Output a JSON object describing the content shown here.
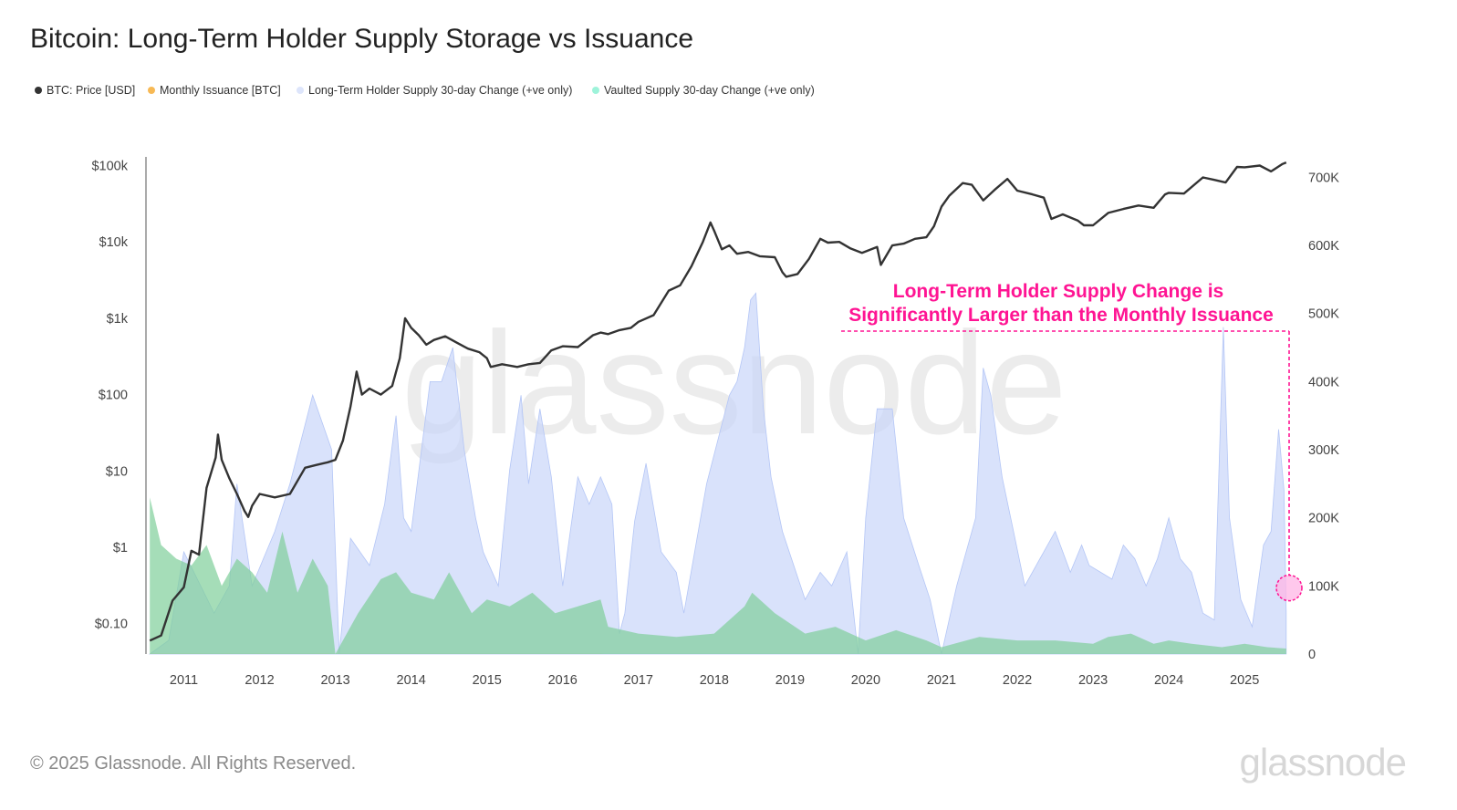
{
  "chart_data": {
    "type": "area",
    "title": "Bitcoin: Long-Term Holder Supply Storage vs Issuance",
    "legend": {
      "placement": "top-left",
      "entries": [
        {
          "name": "BTC: Price [USD]",
          "color": "#333333"
        },
        {
          "name": "Monthly Issuance [BTC]",
          "color": "#f7b955"
        },
        {
          "name": "Long-Term Holder Supply 30-day Change (+ve only)",
          "color": "#dde5fb"
        },
        {
          "name": "Vaulted Supply 30-day Change (+ve only)",
          "color": "#9ef3da"
        }
      ]
    },
    "x_ticks": [
      "2011",
      "2012",
      "2013",
      "2014",
      "2015",
      "2016",
      "2017",
      "2018",
      "2019",
      "2020",
      "2021",
      "2022",
      "2023",
      "2024",
      "2025"
    ],
    "xlim": [
      2010.5,
      2025.6
    ],
    "y_left": {
      "scale": "log",
      "ticks": [
        "$0.10",
        "$1",
        "$10",
        "$100",
        "$1k",
        "$10k",
        "$100k"
      ],
      "tick_values": [
        0.1,
        1,
        10,
        100,
        1000,
        10000,
        100000
      ],
      "ylim": [
        0.04,
        130000
      ]
    },
    "y_right": {
      "scale": "linear",
      "ticks": [
        "0",
        "100K",
        "200K",
        "300K",
        "400K",
        "500K",
        "600K",
        "700K"
      ],
      "tick_values": [
        0,
        100000,
        200000,
        300000,
        400000,
        500000,
        600000,
        700000
      ],
      "ylim": [
        0,
        730000
      ]
    },
    "grid": false,
    "series": [
      {
        "name": "BTC: Price [USD]",
        "axis": "left",
        "color": "#333333",
        "x": [
          2010.55,
          2010.7,
          2010.85,
          2011.0,
          2011.1,
          2011.2,
          2011.3,
          2011.42,
          2011.45,
          2011.5,
          2011.6,
          2011.7,
          2011.8,
          2011.85,
          2011.9,
          2012.0,
          2012.2,
          2012.4,
          2012.6,
          2012.75,
          2012.9,
          2013.0,
          2013.1,
          2013.2,
          2013.28,
          2013.35,
          2013.45,
          2013.6,
          2013.75,
          2013.85,
          2013.92,
          2014.0,
          2014.1,
          2014.2,
          2014.3,
          2014.45,
          2014.6,
          2014.75,
          2014.9,
          2015.0,
          2015.05,
          2015.2,
          2015.4,
          2015.55,
          2015.7,
          2015.85,
          2016.0,
          2016.2,
          2016.4,
          2016.5,
          2016.6,
          2016.75,
          2016.9,
          2017.0,
          2017.2,
          2017.4,
          2017.55,
          2017.7,
          2017.85,
          2017.95,
          2018.0,
          2018.1,
          2018.2,
          2018.3,
          2018.45,
          2018.6,
          2018.8,
          2018.9,
          2018.95,
          2019.1,
          2019.25,
          2019.4,
          2019.5,
          2019.65,
          2019.8,
          2019.95,
          2020.15,
          2020.2,
          2020.35,
          2020.5,
          2020.65,
          2020.8,
          2020.9,
          2021.0,
          2021.1,
          2021.28,
          2021.4,
          2021.55,
          2021.7,
          2021.87,
          2022.0,
          2022.2,
          2022.35,
          2022.45,
          2022.6,
          2022.8,
          2022.88,
          2023.0,
          2023.2,
          2023.4,
          2023.6,
          2023.8,
          2023.95,
          2024.0,
          2024.2,
          2024.45,
          2024.6,
          2024.75,
          2024.9,
          2025.0,
          2025.2,
          2025.35,
          2025.5,
          2025.55
        ],
        "values": [
          0.06,
          0.07,
          0.2,
          0.3,
          0.9,
          0.8,
          6,
          15,
          30,
          14,
          8,
          5,
          3,
          2.5,
          3.5,
          5,
          4.5,
          5,
          11,
          12,
          13,
          14,
          25,
          70,
          200,
          100,
          120,
          100,
          130,
          300,
          1000,
          750,
          600,
          450,
          520,
          580,
          480,
          400,
          360,
          300,
          230,
          250,
          230,
          250,
          260,
          380,
          430,
          420,
          600,
          650,
          620,
          700,
          750,
          900,
          1100,
          2300,
          2700,
          4800,
          10000,
          18000,
          14000,
          8000,
          9000,
          7000,
          7400,
          6500,
          6300,
          4000,
          3500,
          3800,
          6000,
          11000,
          9800,
          10000,
          8200,
          7200,
          8600,
          5000,
          9000,
          9500,
          11000,
          11500,
          16000,
          29000,
          40000,
          59000,
          56000,
          35000,
          48000,
          67000,
          47000,
          42000,
          38000,
          20000,
          23000,
          19000,
          16500,
          16500,
          24000,
          27000,
          30000,
          28000,
          42000,
          44000,
          43000,
          70000,
          65000,
          60000,
          96000,
          95000,
          100000,
          84000,
          105000,
          110000
        ]
      },
      {
        "name": "Monthly Issuance [BTC]",
        "axis": "right",
        "color": "#f7b955",
        "x": [
          2010.55,
          2010.62,
          2010.7,
          2010.8,
          2010.9,
          2011.0,
          2011.2,
          2011.4,
          2011.6,
          2011.8,
          2012.0,
          2012.2,
          2012.4,
          2012.6,
          2012.8,
          2012.9,
          2012.95,
          2013.0,
          2013.5,
          2014.0,
          2014.5,
          2015.0,
          2015.5,
          2016.0,
          2016.5,
          2016.55,
          2017.0,
          2018.0,
          2019.0,
          2020.0,
          2020.38,
          2021.0,
          2022.0,
          2023.0,
          2024.0,
          2024.3,
          2025.0,
          2025.55
        ],
        "values": [
          380,
          450,
          280,
          300,
          250,
          260,
          260,
          200,
          230,
          180,
          210,
          195,
          170,
          200,
          230,
          210,
          100,
          100,
          110,
          115,
          120,
          115,
          110,
          105,
          95,
          48,
          52,
          52,
          50,
          50,
          26,
          26,
          25,
          25,
          25,
          12,
          12,
          12
        ]
      },
      {
        "name": "Long-Term Holder Supply 30-day Change (+ve only)",
        "axis": "right",
        "color": "#dde5fb",
        "x": [
          2010.55,
          2010.8,
          2011.0,
          2011.4,
          2011.6,
          2011.7,
          2011.9,
          2012.05,
          2012.2,
          2012.4,
          2012.7,
          2012.95,
          2013.05,
          2013.2,
          2013.45,
          2013.65,
          2013.8,
          2013.9,
          2014.0,
          2014.25,
          2014.4,
          2014.55,
          2014.7,
          2014.85,
          2014.95,
          2015.15,
          2015.3,
          2015.45,
          2015.55,
          2015.7,
          2015.85,
          2016.0,
          2016.2,
          2016.35,
          2016.5,
          2016.65,
          2016.75,
          2016.82,
          2016.95,
          2017.1,
          2017.3,
          2017.5,
          2017.6,
          2017.9,
          2018.2,
          2018.3,
          2018.4,
          2018.48,
          2018.55,
          2018.65,
          2018.75,
          2018.9,
          2019.2,
          2019.4,
          2019.55,
          2019.75,
          2019.9,
          2020.0,
          2020.15,
          2020.35,
          2020.5,
          2020.7,
          2020.85,
          2021.0,
          2021.2,
          2021.45,
          2021.55,
          2021.65,
          2021.8,
          2021.95,
          2022.1,
          2022.3,
          2022.5,
          2022.7,
          2022.85,
          2022.95,
          2023.1,
          2023.25,
          2023.4,
          2023.55,
          2023.7,
          2023.85,
          2024.0,
          2024.15,
          2024.3,
          2024.45,
          2024.6,
          2024.67,
          2024.72,
          2024.8,
          2024.95,
          2025.1,
          2025.25,
          2025.35,
          2025.45,
          2025.52,
          2025.55
        ],
        "values": [
          0,
          20000,
          150000,
          60000,
          100000,
          250000,
          100000,
          140000,
          180000,
          250000,
          380000,
          300000,
          0,
          170000,
          130000,
          220000,
          350000,
          200000,
          180000,
          400000,
          400000,
          450000,
          300000,
          200000,
          150000,
          100000,
          270000,
          380000,
          250000,
          360000,
          260000,
          100000,
          260000,
          220000,
          260000,
          220000,
          30000,
          60000,
          195000,
          280000,
          150000,
          120000,
          60000,
          250000,
          380000,
          400000,
          450000,
          520000,
          530000,
          360000,
          260000,
          180000,
          80000,
          120000,
          100000,
          150000,
          0,
          200000,
          360000,
          360000,
          200000,
          130000,
          80000,
          0,
          100000,
          200000,
          420000,
          380000,
          260000,
          180000,
          100000,
          140000,
          180000,
          120000,
          160000,
          130000,
          120000,
          110000,
          160000,
          140000,
          100000,
          140000,
          200000,
          140000,
          120000,
          60000,
          50000,
          300000,
          480000,
          200000,
          80000,
          40000,
          160000,
          180000,
          330000,
          240000,
          60000
        ]
      },
      {
        "name": "Vaulted Supply 30-day Change (+ve only)",
        "axis": "right",
        "color": "#9ef3da",
        "x": [
          2010.55,
          2010.7,
          2010.9,
          2011.1,
          2011.3,
          2011.5,
          2011.7,
          2011.9,
          2012.1,
          2012.3,
          2012.5,
          2012.7,
          2012.9,
          2013.0,
          2013.3,
          2013.6,
          2013.8,
          2014.0,
          2014.3,
          2014.5,
          2014.8,
          2015.0,
          2015.3,
          2015.6,
          2015.9,
          2016.2,
          2016.5,
          2016.6,
          2017.0,
          2017.5,
          2018.0,
          2018.4,
          2018.5,
          2018.8,
          2019.2,
          2019.6,
          2020.0,
          2020.4,
          2020.8,
          2021.0,
          2021.5,
          2022.0,
          2022.5,
          2023.0,
          2023.2,
          2023.5,
          2023.8,
          2024.0,
          2024.3,
          2024.7,
          2025.0,
          2025.3,
          2025.55
        ],
        "values": [
          230000,
          160000,
          140000,
          130000,
          160000,
          100000,
          140000,
          120000,
          90000,
          180000,
          90000,
          140000,
          100000,
          0,
          60000,
          110000,
          120000,
          90000,
          80000,
          120000,
          60000,
          80000,
          70000,
          90000,
          60000,
          70000,
          80000,
          40000,
          30000,
          25000,
          30000,
          70000,
          90000,
          60000,
          30000,
          40000,
          20000,
          35000,
          20000,
          10000,
          25000,
          20000,
          20000,
          15000,
          25000,
          30000,
          15000,
          20000,
          15000,
          10000,
          15000,
          10000,
          8000
        ]
      }
    ],
    "annotation": {
      "lines": [
        "Long-Term Holder Supply Change is",
        "Significantly Larger than the Monthly Issuance"
      ],
      "color": "#ff1493"
    }
  },
  "watermark": "glassnode",
  "footer": {
    "copyright": "© 2025 Glassnode. All Rights Reserved.",
    "brand": "glassnode"
  }
}
